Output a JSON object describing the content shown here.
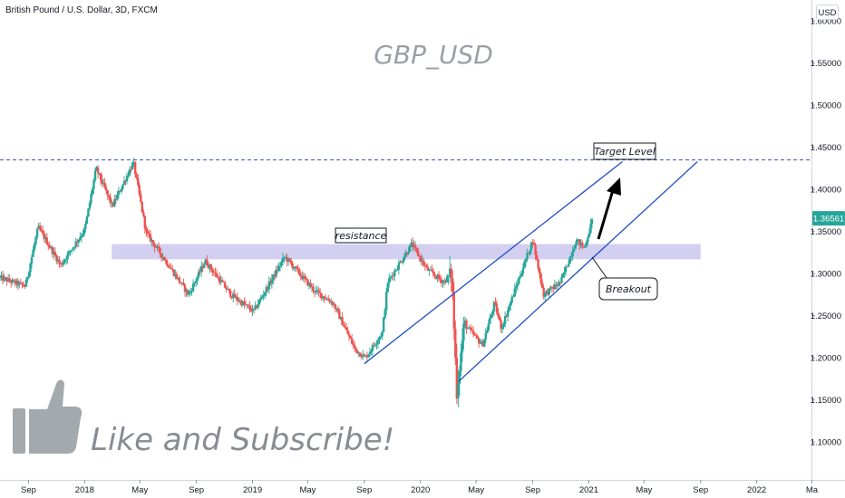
{
  "header": {
    "symbol_title": "British Pound / U.S. Dollar, 3D, FXCM",
    "currency_button": "USD",
    "watermark": "GBP_USD"
  },
  "annotations": {
    "resistance": "resistance",
    "target": "Target Level",
    "breakout": "Breakout",
    "subscribe": "Like and Subscribe!"
  },
  "colors": {
    "up": "#26a69a",
    "down": "#ef5350",
    "channel": "#1e4fc4",
    "target_line": "#3f51b5",
    "zone": "#c7c3ee",
    "price_badge": "#26a69a"
  },
  "icons": {
    "thumb": "thumbs-up-icon"
  },
  "chart_data": {
    "type": "candlestick",
    "title": "British Pound / U.S. Dollar, 3D, FXCM",
    "currency": "USD",
    "current_price": "1.36561",
    "y_ticks": [
      "1.60000",
      "1.55000",
      "1.50000",
      "1.45000",
      "1.40000",
      "1.35000",
      "1.30000",
      "1.25000",
      "1.20000",
      "1.15000",
      "1.10000"
    ],
    "ylim": [
      1.055,
      1.625
    ],
    "x_ticks": [
      "Sep",
      "2018",
      "May",
      "Sep",
      "2019",
      "May",
      "Sep",
      "2020",
      "May",
      "Sep",
      "2021",
      "May",
      "Sep",
      "2022",
      "Ma"
    ],
    "x_range": [
      "2017-07-01",
      "2022-04-30"
    ],
    "anchors": [
      {
        "date": "2017-07-01",
        "price": 1.295
      },
      {
        "date": "2017-08-25",
        "price": 1.285
      },
      {
        "date": "2017-09-22",
        "price": 1.355
      },
      {
        "date": "2017-11-10",
        "price": 1.31
      },
      {
        "date": "2018-01-01",
        "price": 1.352
      },
      {
        "date": "2018-01-26",
        "price": 1.425
      },
      {
        "date": "2018-03-02",
        "price": 1.38
      },
      {
        "date": "2018-04-17",
        "price": 1.432
      },
      {
        "date": "2018-05-15",
        "price": 1.348
      },
      {
        "date": "2018-06-20",
        "price": 1.32
      },
      {
        "date": "2018-08-15",
        "price": 1.275
      },
      {
        "date": "2018-09-20",
        "price": 1.315
      },
      {
        "date": "2018-11-15",
        "price": 1.275
      },
      {
        "date": "2019-01-03",
        "price": 1.255
      },
      {
        "date": "2019-03-12",
        "price": 1.32
      },
      {
        "date": "2019-05-15",
        "price": 1.28
      },
      {
        "date": "2019-06-25",
        "price": 1.265
      },
      {
        "date": "2019-08-12",
        "price": 1.21
      },
      {
        "date": "2019-09-03",
        "price": 1.2
      },
      {
        "date": "2019-10-10",
        "price": 1.23
      },
      {
        "date": "2019-10-22",
        "price": 1.29
      },
      {
        "date": "2019-12-13",
        "price": 1.335
      },
      {
        "date": "2020-01-15",
        "price": 1.305
      },
      {
        "date": "2020-02-20",
        "price": 1.29
      },
      {
        "date": "2020-03-09",
        "price": 1.3
      },
      {
        "date": "2020-03-20",
        "price": 1.16
      },
      {
        "date": "2020-04-05",
        "price": 1.24
      },
      {
        "date": "2020-05-15",
        "price": 1.215
      },
      {
        "date": "2020-06-10",
        "price": 1.265
      },
      {
        "date": "2020-06-25",
        "price": 1.235
      },
      {
        "date": "2020-09-01",
        "price": 1.34
      },
      {
        "date": "2020-09-25",
        "price": 1.275
      },
      {
        "date": "2020-11-01",
        "price": 1.29
      },
      {
        "date": "2020-12-05",
        "price": 1.34
      },
      {
        "date": "2020-12-22",
        "price": 1.33
      },
      {
        "date": "2021-01-10",
        "price": 1.366
      }
    ],
    "resistance_zone": {
      "label": "resistance",
      "from": "2018-03-01",
      "to": "2021-09-01",
      "low": 1.317,
      "high": 1.335
    },
    "target_level": {
      "label": "Target Level",
      "price": 1.435
    },
    "channel_lines": [
      {
        "from": {
          "date": "2019-09-01",
          "price": 1.193
        },
        "to": {
          "date": "2021-03-15",
          "price": 1.433
        }
      },
      {
        "from": {
          "date": "2020-03-24",
          "price": 1.172
        },
        "to": {
          "date": "2021-08-25",
          "price": 1.433
        }
      }
    ],
    "breakout": {
      "label": "Breakout",
      "date": "2021-01-05",
      "price": 1.33
    }
  }
}
